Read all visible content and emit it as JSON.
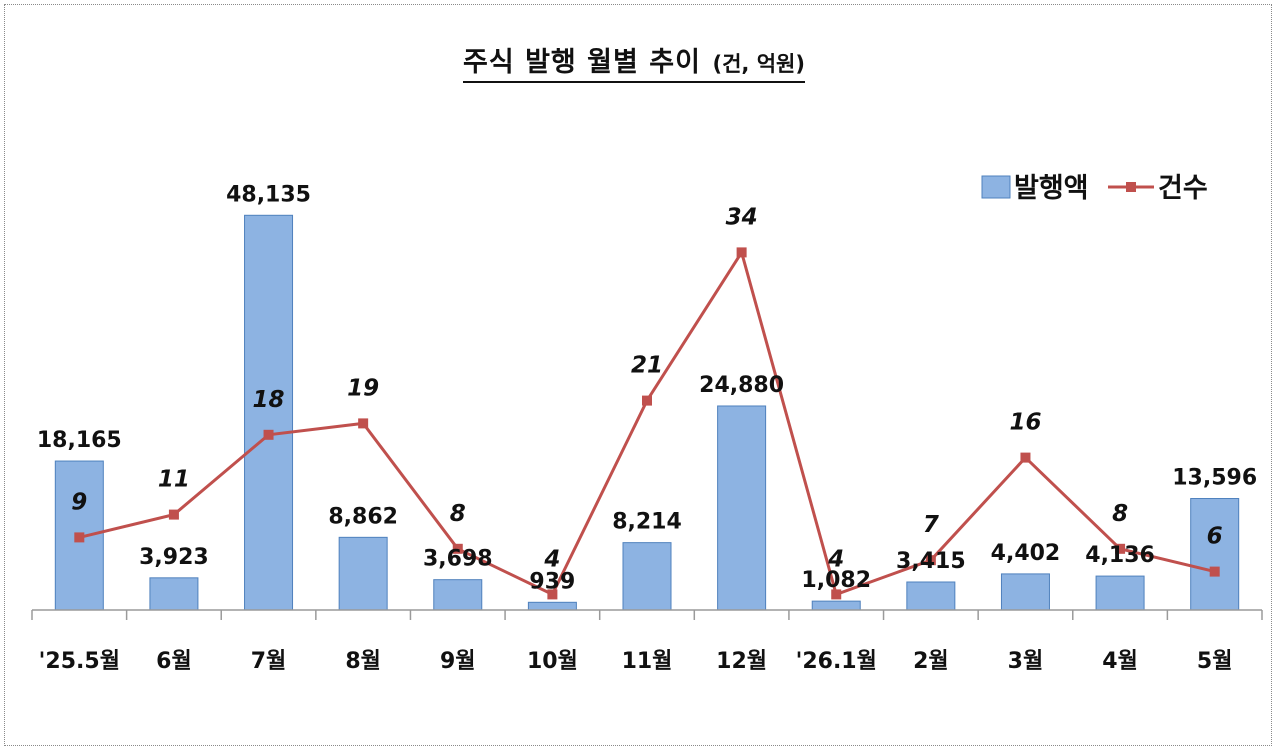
{
  "chart_data": {
    "type": "bar",
    "title": "주식 발행 월별 추이",
    "unit_note": "(건, 억원)",
    "categories": [
      "'25.5월",
      "6월",
      "7월",
      "8월",
      "9월",
      "10월",
      "11월",
      "12월",
      "'26.1월",
      "2월",
      "3월",
      "4월",
      "5월"
    ],
    "series": [
      {
        "name": "발행액",
        "type": "bar",
        "color": "#8DB3E2",
        "values": [
          18165,
          3923,
          48135,
          8862,
          3698,
          939,
          8214,
          24880,
          1082,
          3415,
          4402,
          4136,
          13596
        ],
        "labels": [
          "18,165",
          "3,923",
          "48,135",
          "8,862",
          "3,698",
          "939",
          "8,214",
          "24,880",
          "1,082",
          "3,415",
          "4,402",
          "4,136",
          "13,596"
        ]
      },
      {
        "name": "건수",
        "type": "line",
        "color": "#C0504D",
        "values": [
          9,
          11,
          18,
          19,
          8,
          4,
          21,
          34,
          4,
          7,
          16,
          8,
          6
        ],
        "labels": [
          "9",
          "11",
          "18",
          "19",
          "8",
          "4",
          "21",
          "34",
          "4",
          "7",
          "16",
          "8",
          "6"
        ]
      }
    ],
    "legend_position": "top-right",
    "grid": false
  }
}
